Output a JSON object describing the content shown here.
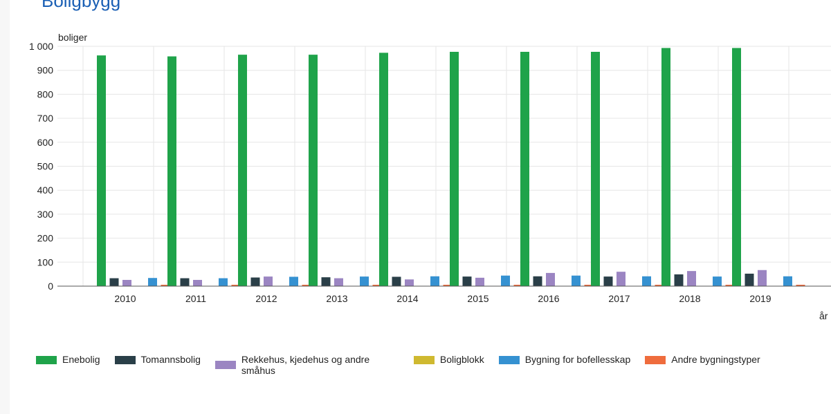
{
  "page": {
    "heading": "Boligbygg"
  },
  "chart_data": {
    "type": "bar",
    "title": "",
    "ylabel": "boliger",
    "xlabel": "år",
    "ylim": [
      0,
      1000
    ],
    "yticks": [
      0,
      100,
      200,
      300,
      400,
      500,
      600,
      700,
      800,
      900,
      1000
    ],
    "ytick_labels": [
      "0",
      "100",
      "200",
      "300",
      "400",
      "500",
      "600",
      "700",
      "800",
      "900",
      "1 000"
    ],
    "grid": true,
    "legend_position": "bottom",
    "categories": [
      "2010",
      "2011",
      "2012",
      "2013",
      "2014",
      "2015",
      "2016",
      "2017",
      "2018",
      "2019"
    ],
    "series": [
      {
        "name": "Enebolig",
        "color": "#1fa34a",
        "values": [
          962,
          958,
          965,
          965,
          973,
          977,
          977,
          977,
          993,
          993
        ]
      },
      {
        "name": "Tomannsbolig",
        "color": "#2a3f48",
        "values": [
          33,
          33,
          36,
          37,
          39,
          40,
          41,
          40,
          49,
          52
        ]
      },
      {
        "name": "Rekkehus, kjedehus og andre småhus",
        "color": "#9b85c2",
        "values": [
          26,
          26,
          40,
          33,
          28,
          35,
          55,
          60,
          63,
          67
        ]
      },
      {
        "name": "Boligblokk",
        "color": "#cfb930",
        "values": [
          0,
          0,
          0,
          0,
          0,
          0,
          0,
          0,
          0,
          0
        ]
      },
      {
        "name": "Bygning for bofellesskap",
        "color": "#3591d1",
        "values": [
          34,
          33,
          39,
          40,
          41,
          44,
          44,
          41,
          40,
          41
        ]
      },
      {
        "name": "Andre bygningstyper",
        "color": "#ef6c3d",
        "values": [
          5,
          4,
          4,
          4,
          4,
          4,
          4,
          4,
          3,
          4
        ]
      }
    ]
  }
}
